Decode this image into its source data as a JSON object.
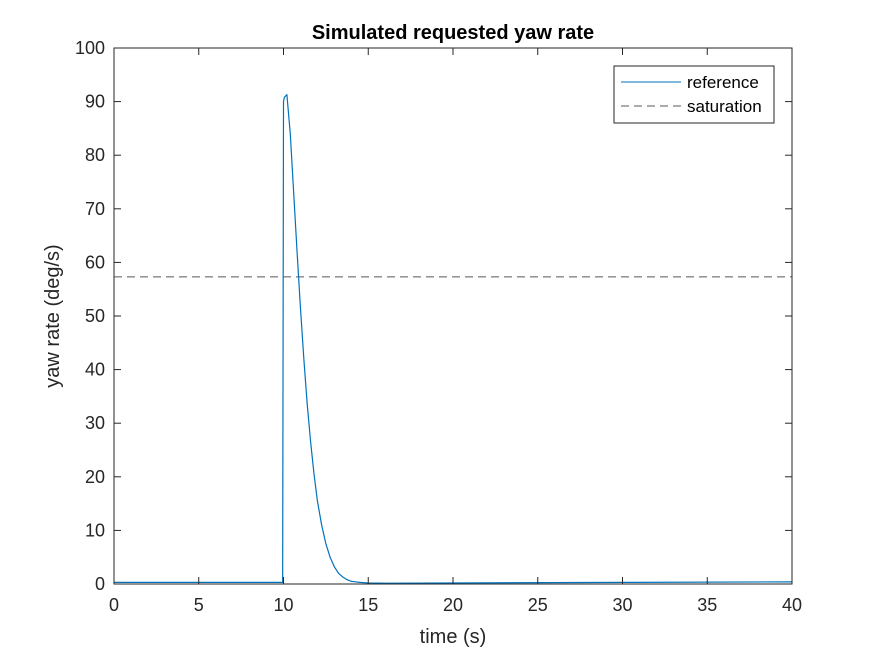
{
  "chart_data": {
    "type": "line",
    "title": "Simulated requested yaw rate",
    "xlabel": "time (s)",
    "ylabel": "yaw rate (deg/s)",
    "xlim": [
      0,
      40
    ],
    "ylim": [
      0,
      100
    ],
    "xticks": [
      0,
      5,
      10,
      15,
      20,
      25,
      30,
      35,
      40
    ],
    "yticks": [
      0,
      10,
      20,
      30,
      40,
      50,
      60,
      70,
      80,
      90,
      100
    ],
    "grid": false,
    "legend_position": "top-right",
    "series": [
      {
        "name": "reference",
        "color": "#0072BD",
        "style": "solid",
        "x": [
          0,
          9.95,
          10.0,
          10.05,
          10.2,
          10.4,
          10.6,
          10.8,
          11.0,
          11.2,
          11.4,
          11.6,
          11.8,
          12.0,
          12.25,
          12.5,
          12.75,
          13.0,
          13.25,
          13.5,
          13.75,
          14.0,
          14.5,
          15.0,
          16.0,
          20.0,
          30.0,
          40.0
        ],
        "y": [
          0.3,
          0.3,
          90.0,
          90.8,
          91.3,
          84.0,
          73.0,
          62.0,
          51.5,
          42.0,
          33.5,
          26.5,
          20.5,
          15.5,
          11.0,
          7.5,
          5.0,
          3.2,
          2.0,
          1.3,
          0.8,
          0.5,
          0.3,
          0.2,
          0.15,
          0.2,
          0.3,
          0.4
        ]
      },
      {
        "name": "saturation",
        "color": "#595959",
        "style": "dashed",
        "x": [
          0,
          40
        ],
        "y": [
          57.3,
          57.3
        ]
      }
    ]
  }
}
